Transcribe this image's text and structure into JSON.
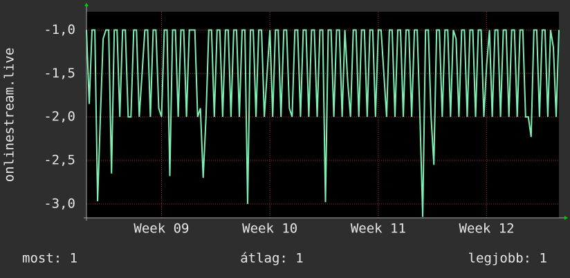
{
  "chart_data": {
    "type": "line",
    "y_label": "onlinestream.live",
    "color": "#80efb4",
    "values": [
      -1,
      -1.85,
      -1,
      -1,
      -2.97,
      -2,
      -1.1,
      -1,
      -1,
      -2.65,
      -1,
      -1,
      -2,
      -1,
      -1,
      -2,
      -2,
      -1,
      -1,
      -2,
      -1.5,
      -1,
      -1,
      -2,
      -1,
      -1,
      -1.9,
      -2,
      -1,
      -1,
      -2.68,
      -1,
      -1,
      -2,
      -1,
      -1,
      -2,
      -1,
      -1,
      -1,
      -2,
      -1.9,
      -2.7,
      -2,
      -1,
      -1,
      -2,
      -1,
      -1,
      -2,
      -1,
      -1,
      -2,
      -1,
      -1,
      -2,
      -1,
      -1,
      -3.0,
      -1,
      -1,
      -2,
      -1,
      -1,
      -2,
      -1.5,
      -1,
      -2,
      -1,
      -1,
      -2,
      -1,
      -1,
      -1.9,
      -2,
      -1,
      -1,
      -2,
      -1,
      -1,
      -2,
      -1,
      -1,
      -2,
      -1,
      -1,
      -2.98,
      -1,
      -1,
      -2,
      -1,
      -1,
      -2,
      -1,
      -1.6,
      -2,
      -1,
      -1,
      -2,
      -1,
      -1,
      -2,
      -1,
      -1,
      -2,
      -1,
      -1,
      -1.5,
      -2,
      -1,
      -1,
      -2,
      -1,
      -1,
      -2,
      -1,
      -1,
      -2,
      -1,
      -1,
      -2,
      -3.15,
      -1,
      -1,
      -2,
      -2.55,
      -1,
      -1,
      -2,
      -1,
      -1,
      -2,
      -1,
      -1.1,
      -2,
      -1,
      -1,
      -2,
      -1,
      -1,
      -2,
      -1,
      -1,
      -2,
      -1.4,
      -1,
      -2,
      -1,
      -1,
      -2,
      -1,
      -1,
      -2,
      -1,
      -1,
      -2,
      -1,
      -1,
      -2,
      -2,
      -2.23,
      -1,
      -1,
      -2,
      -1,
      -1,
      -2,
      -1,
      -1.2,
      -2,
      -1
    ],
    "xlim": [
      0,
      170
    ],
    "xticks": [
      {
        "value": 27,
        "label": "Week 09"
      },
      {
        "value": 66,
        "label": "Week 10"
      },
      {
        "value": 105,
        "label": "Week 11"
      },
      {
        "value": 144,
        "label": "Week 12"
      }
    ],
    "ylim": [
      -3.16,
      -0.79
    ],
    "yticks": [
      {
        "value": -3,
        "label": "-3,0"
      },
      {
        "value": -2.5,
        "label": "-2,5"
      },
      {
        "value": -2,
        "label": "-2,0"
      },
      {
        "value": -1.5,
        "label": "-1,5"
      },
      {
        "value": -1,
        "label": "-1,0"
      }
    ],
    "grid": true,
    "legend": [
      "most: 1",
      "átlag: 1",
      "legjobb: 1"
    ]
  }
}
